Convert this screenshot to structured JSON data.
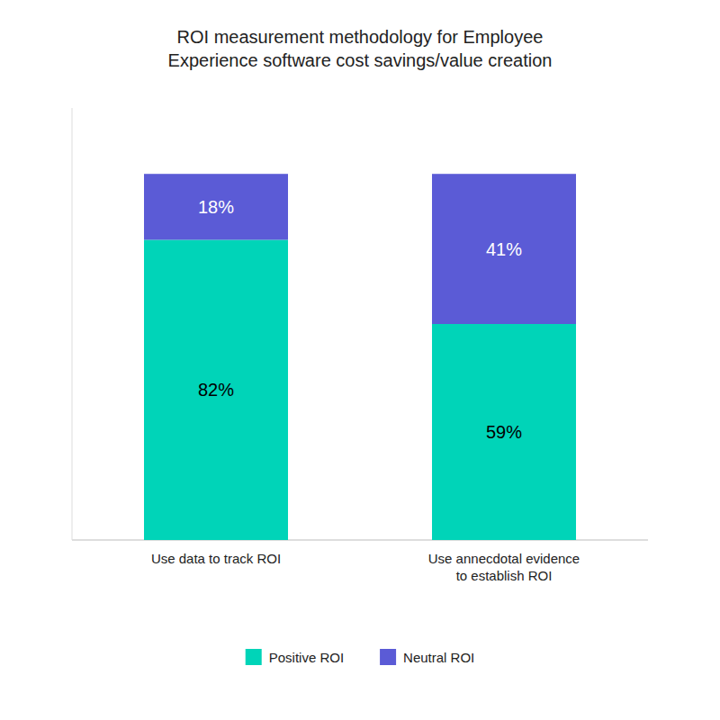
{
  "chart_data": {
    "type": "bar",
    "stacked": true,
    "title": "ROI measurement methodology for Employee\nExperience software cost savings/value creation",
    "categories": [
      "Use data to track ROI",
      "Use annecdotal evidence\nto establish ROI"
    ],
    "series": [
      {
        "name": "Positive ROI",
        "color": "#00D4B8",
        "values": [
          82,
          59
        ],
        "value_labels": [
          "82%",
          "59%"
        ]
      },
      {
        "name": "Neutral ROI",
        "color": "#5B5BD6",
        "values": [
          18,
          41
        ],
        "value_labels": [
          "18%",
          "41%"
        ]
      }
    ],
    "ylim": [
      0,
      118
    ],
    "data_labels": true,
    "tick_labels": "x",
    "legend": "bottom"
  }
}
